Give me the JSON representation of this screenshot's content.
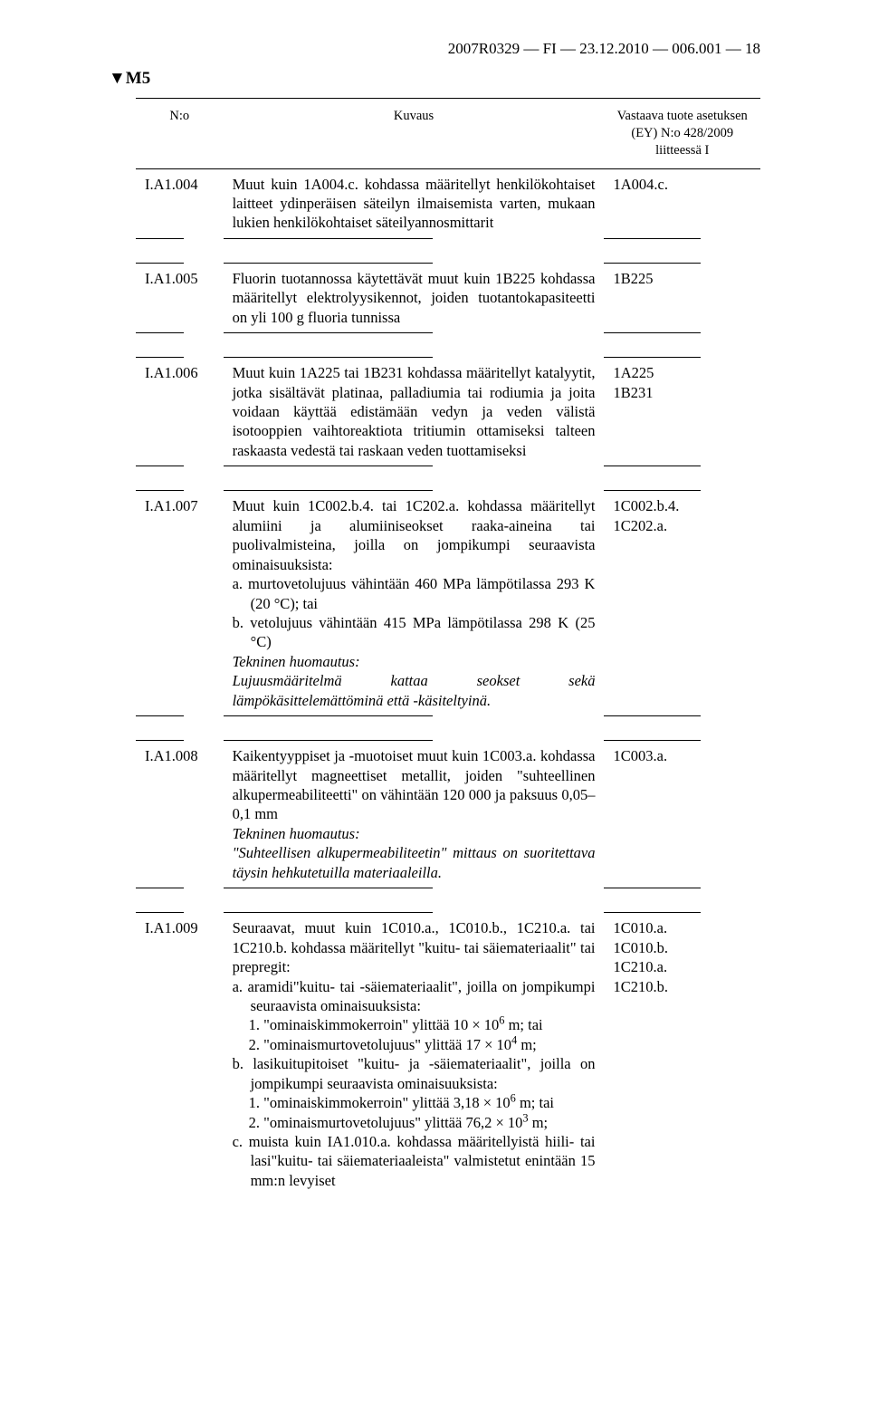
{
  "header": "2007R0329 — FI — 23.12.2010 — 006.001 — 18",
  "marker": "▼M5",
  "table": {
    "columns": {
      "c1": "N:o",
      "c2": "Kuvaus",
      "c3": "Vastaava tuote asetuksen (EY) N:o 428/2009 liitteessä I"
    },
    "rows": [
      {
        "id": "I.A1.004",
        "desc": "Muut kuin 1A004.c. kohdassa määritellyt henkilökohtaiset laitteet ydinperäisen säteilyn ilmaisemista varten, mukaan lukien henkilökohtaiset säteilyannosmittarit",
        "ref": "1A004.c."
      },
      {
        "id": "I.A1.005",
        "desc": "Fluorin tuotannossa käytettävät muut kuin 1B225 kohdassa määritellyt elektrolyysikennot, joiden tuotantokapasiteetti on yli 100 g fluoria tunnissa",
        "ref": "1B225"
      },
      {
        "id": "I.A1.006",
        "desc": "Muut kuin 1A225 tai 1B231 kohdassa määritellyt katalyytit, jotka sisältävät platinaa, palladiumia tai rodiumia ja joita voidaan käyttää edistämään vedyn ja veden välistä isotooppien vaihtoreaktiota tritiumin ottamiseksi talteen raskaasta vedestä tai raskaan veden tuottamiseksi",
        "ref1": "1A225",
        "ref2": "1B231"
      },
      {
        "id": "I.A1.007",
        "lead": "Muut kuin 1C002.b.4. tai 1C202.a. kohdassa määritellyt alumiini ja alumiiniseokset raaka-aineina tai puolivalmisteina, joilla on jompikumpi seuraavista ominaisuuksista:",
        "a": "a. murtovetolujuus vähintään 460 MPa lämpötilassa 293 K (20 °C); tai",
        "b": "b. vetolujuus vähintään 415 MPa lämpötilassa 298 K (25 °C)",
        "tech_label": "Tekninen huomautus:",
        "tech_body": "Lujuusmääritelmä kattaa seokset sekä lämpökäsittelemättöminä että -käsiteltyinä.",
        "ref1": "1C002.b.4.",
        "ref2": "1C202.a."
      },
      {
        "id": "I.A1.008",
        "lead": "Kaikentyyppiset ja -muotoiset muut kuin 1C003.a. kohdassa määritellyt magneettiset metallit, joiden \"suhteellinen alkupermeabiliteetti\" on vähintään 120 000 ja paksuus 0,05–0,1 mm",
        "tech_label": "Tekninen huomautus:",
        "tech_body": "\"Suhteellisen alkupermeabiliteetin\" mittaus on suoritettava täysin hehkutetuilla materiaaleilla.",
        "ref": "1C003.a."
      },
      {
        "id": "I.A1.009",
        "lead": "Seuraavat, muut kuin 1C010.a., 1C010.b., 1C210.a. tai 1C210.b. kohdassa määritellyt \"kuitu- tai säiemateriaalit\" tai prepregit:",
        "a": "a. aramidi\"kuitu- tai -säiemateriaalit\", joilla on jompikumpi seuraavista ominaisuuksista:",
        "a1_pre": "1. \"ominaiskimmokerroin\" ylittää 10 × 10",
        "a1_exp": "6",
        "a1_post": " m; tai",
        "a2_pre": "2. \"ominaismurtovetolujuus\" ylittää 17 × 10",
        "a2_exp": "4",
        "a2_post": " m;",
        "b": "b. lasikuitupitoiset \"kuitu- ja -säiemateriaalit\", joilla on jompikumpi seuraavista ominaisuuksista:",
        "b1_pre": "1. \"ominaiskimmokerroin\" ylittää 3,18 × 10",
        "b1_exp": "6",
        "b1_post": " m; tai",
        "b2_pre": "2. \"ominaismurtovetolujuus\" ylittää 76,2 × 10",
        "b2_exp": "3",
        "b2_post": " m;",
        "c": "c. muista kuin IA1.010.a. kohdassa määritellyistä hiili- tai lasi\"kuitu- tai säiemateriaaleista\" valmistetut enintään 15 mm:n levyiset",
        "ref1": "1C010.a.",
        "ref2": "1C010.b.",
        "ref3": "1C210.a.",
        "ref4": "1C210.b."
      }
    ]
  }
}
